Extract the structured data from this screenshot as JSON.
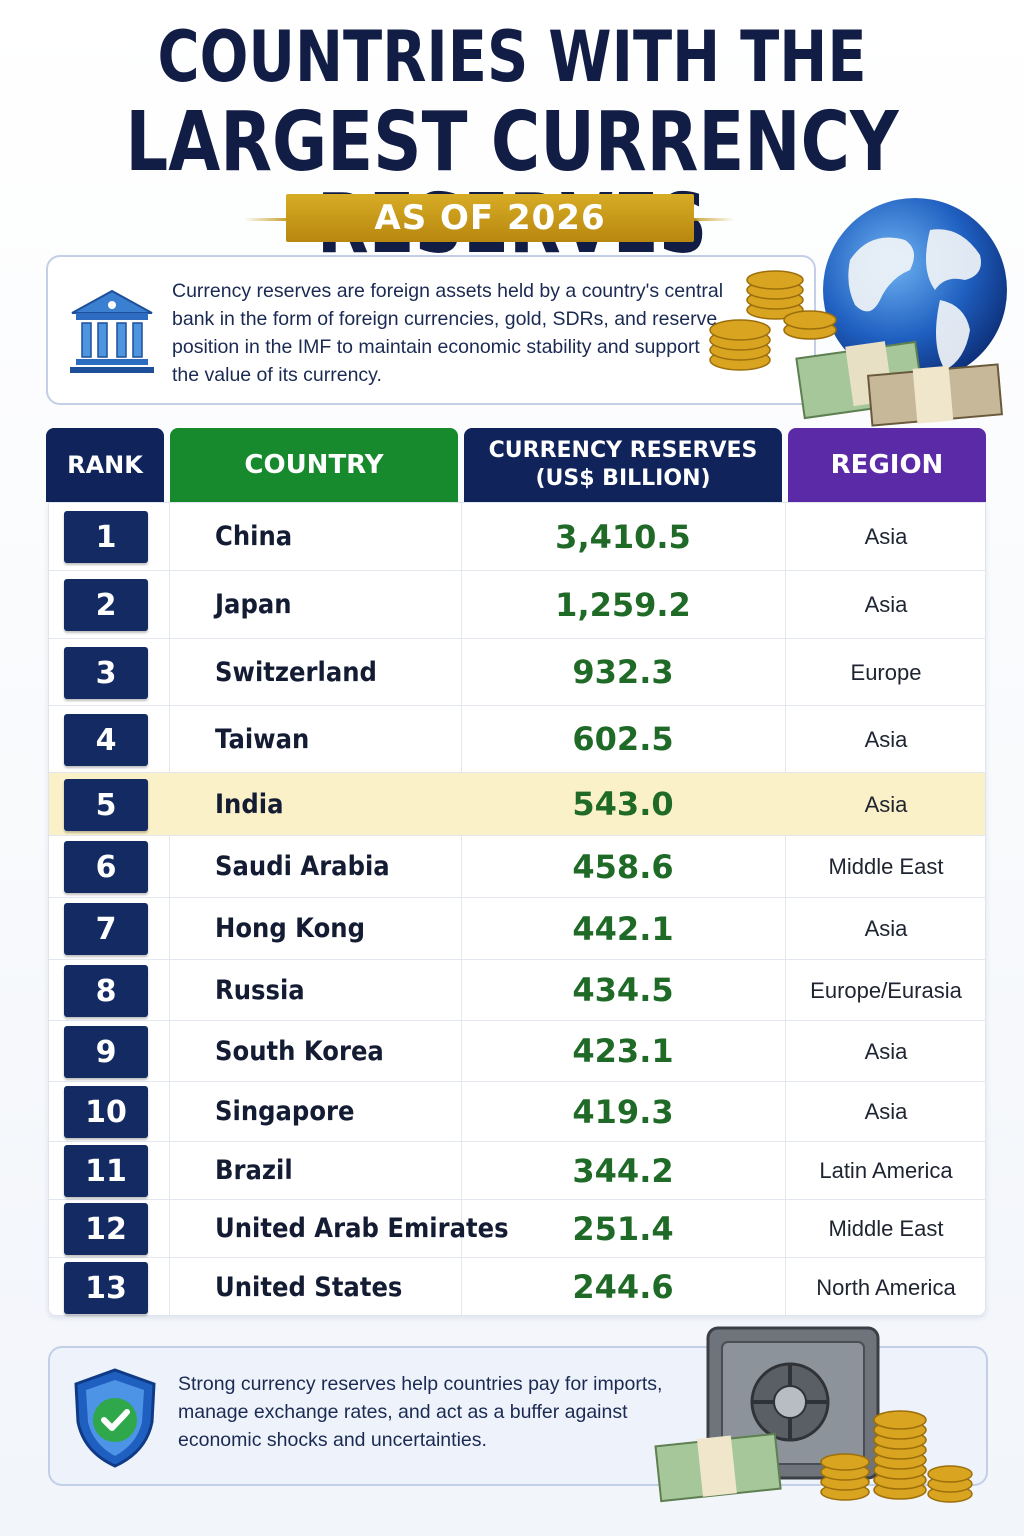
{
  "header": {
    "title_line1": "COUNTRIES WITH THE",
    "title_line2": "LARGEST CURRENCY RESERVES",
    "subtitle": "AS OF 2026"
  },
  "info": {
    "text": "Currency reserves are foreign assets held by a country's central bank in the form of foreign currencies, gold, SDRs, and reserve position in the IMF to maintain economic stability and support the value of its currency."
  },
  "table": {
    "headers": {
      "rank": "RANK",
      "country": "COUNTRY",
      "reserves_line1": "CURRENCY RESERVES",
      "reserves_line2": "(US$ BILLION)",
      "region": "REGION"
    },
    "highlight_color": "#fbf1c8",
    "rows": [
      {
        "rank": "1",
        "country": "China",
        "value": "3,410.5",
        "region": "Asia"
      },
      {
        "rank": "2",
        "country": "Japan",
        "value": "1,259.2",
        "region": "Asia"
      },
      {
        "rank": "3",
        "country": "Switzerland",
        "value": "932.3",
        "region": "Europe"
      },
      {
        "rank": "4",
        "country": "Taiwan",
        "value": "602.5",
        "region": "Asia"
      },
      {
        "rank": "5",
        "country": "India",
        "value": "543.0",
        "region": "Asia",
        "highlight": true
      },
      {
        "rank": "6",
        "country": "Saudi Arabia",
        "value": "458.6",
        "region": "Middle East"
      },
      {
        "rank": "7",
        "country": "Hong Kong",
        "value": "442.1",
        "region": "Asia"
      },
      {
        "rank": "8",
        "country": "Russia",
        "value": "434.5",
        "region": "Europe/Eurasia"
      },
      {
        "rank": "9",
        "country": "South Korea",
        "value": "423.1",
        "region": "Asia"
      },
      {
        "rank": "10",
        "country": "Singapore",
        "value": "419.3",
        "region": "Asia"
      },
      {
        "rank": "11",
        "country": "Brazil",
        "value": "344.2",
        "region": "Latin America"
      },
      {
        "rank": "12",
        "country": "United Arab Emirates",
        "value": "251.4",
        "region": "Middle East"
      },
      {
        "rank": "13",
        "country": "United States",
        "value": "244.6",
        "region": "North America"
      }
    ]
  },
  "chart_data": {
    "type": "table",
    "title": "COUNTRIES WITH THE LARGEST CURRENCY RESERVES",
    "subtitle": "AS OF 2026",
    "columns": [
      "RANK",
      "COUNTRY",
      "CURRENCY RESERVES (US$ BILLION)",
      "REGION"
    ],
    "categories": [
      "China",
      "Japan",
      "Switzerland",
      "Taiwan",
      "India",
      "Saudi Arabia",
      "Hong Kong",
      "Russia",
      "South Korea",
      "Singapore",
      "Brazil",
      "United Arab Emirates",
      "United States"
    ],
    "values": [
      3410.5,
      1259.2,
      932.3,
      602.5,
      543.0,
      458.6,
      442.1,
      434.5,
      423.1,
      419.3,
      344.2,
      251.4,
      244.6
    ]
  },
  "footer": {
    "text": "Strong currency reserves help countries pay for imports, manage exchange rates, and act as a buffer against economic shocks and uncertainties."
  },
  "icons": {
    "bank": "bank-icon",
    "shield": "shield-check-icon",
    "globe": "globe-icon",
    "safe": "safe-icon"
  },
  "colors": {
    "navy": "#10235a",
    "green_header": "#168a2c",
    "purple_header": "#5b2aa6",
    "gold": "#c99a1c",
    "value_green": "#1f6a27"
  }
}
